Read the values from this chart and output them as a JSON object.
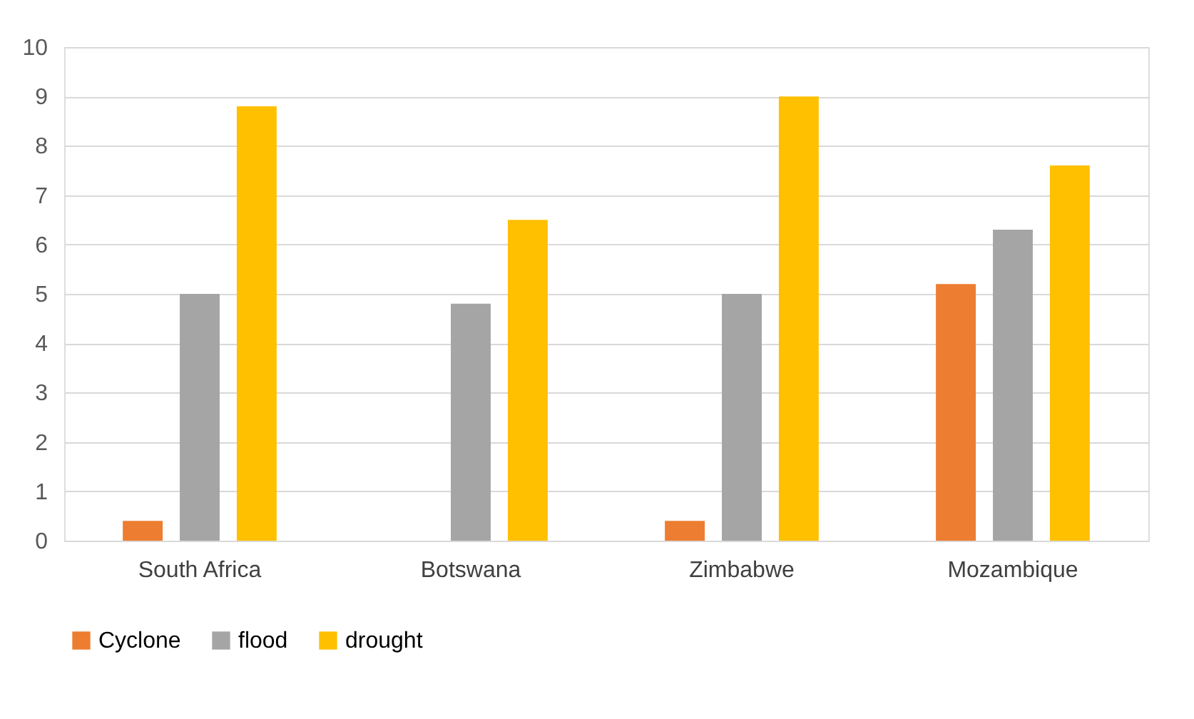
{
  "chart_data": {
    "type": "bar",
    "categories": [
      "South Africa",
      "Botswana",
      "Zimbabwe",
      "Mozambique"
    ],
    "series": [
      {
        "name": "Cyclone",
        "color": "#ed7d31",
        "values": [
          0.4,
          0,
          0.4,
          5.2
        ]
      },
      {
        "name": "flood",
        "color": "#a5a5a5",
        "values": [
          5,
          4.8,
          5,
          6.3
        ]
      },
      {
        "name": "drought",
        "color": "#ffc000",
        "values": [
          8.8,
          6.5,
          9,
          7.6
        ]
      }
    ],
    "ylim": [
      0,
      10
    ],
    "yticks": [
      0,
      1,
      2,
      3,
      4,
      5,
      6,
      7,
      8,
      9,
      10
    ],
    "grid": "y",
    "legend": "bottom"
  }
}
